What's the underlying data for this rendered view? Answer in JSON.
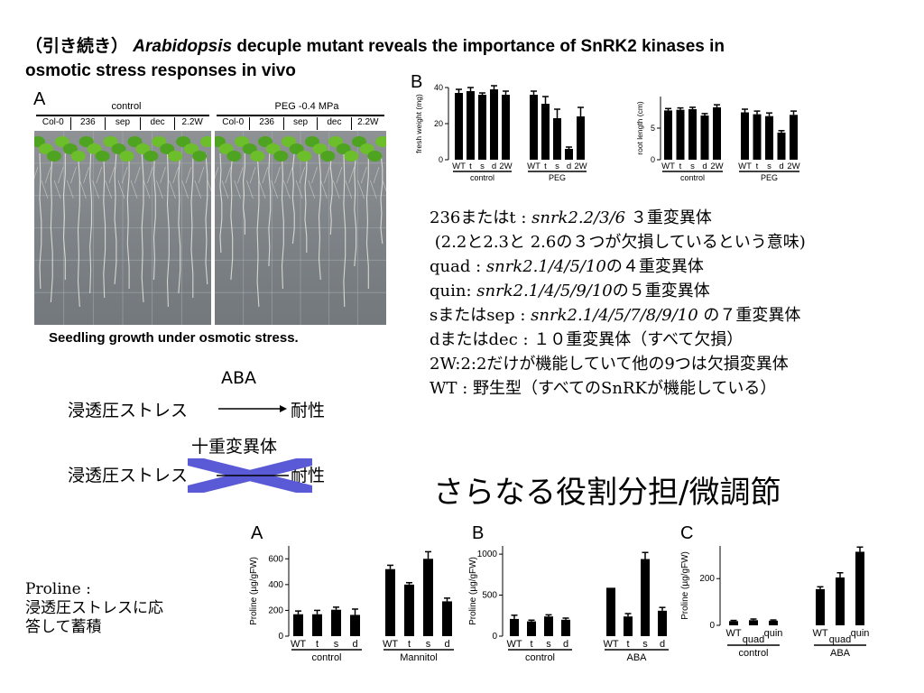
{
  "header": {
    "prefix": "（引き続き）",
    "italic_word": "Arabidopsis",
    "rest_line1": " decuple mutant reveals the importance of SnRK2 kinases in",
    "line2": "osmotic stress responses in vivo"
  },
  "figure_a": {
    "letter": "A",
    "left_photo": {
      "title": "control",
      "labels": [
        "Col-0",
        "236",
        "sep",
        "dec",
        "2.2W"
      ]
    },
    "right_photo": {
      "title": "PEG -0.4 MPa",
      "labels": [
        "Col-0",
        "236",
        "sep",
        "dec",
        "2.2W"
      ]
    },
    "caption": "Seedling growth under osmotic stress."
  },
  "figure_b": {
    "letter": "B",
    "chart_data": [
      {
        "type": "bar",
        "ylabel": "fresh weight (mg)",
        "ylim": [
          0,
          40
        ],
        "yticks": [
          0,
          20,
          40
        ],
        "groups": [
          {
            "name": "control",
            "categories": [
              "WT",
              "t",
              "s",
              "d",
              "2W"
            ],
            "values": [
              37,
              38,
              36,
              39,
              36
            ],
            "errors": [
              2,
              2,
              1,
              2,
              2
            ]
          },
          {
            "name": "PEG",
            "categories": [
              "WT",
              "t",
              "s",
              "d",
              "2W"
            ],
            "values": [
              36,
              31,
              23,
              6,
              24
            ],
            "errors": [
              2,
              4,
              5,
              1,
              5
            ]
          }
        ]
      },
      {
        "type": "bar",
        "ylabel": "root length (cm)",
        "ylim": [
          0,
          10
        ],
        "yticks": [
          0,
          5
        ],
        "groups": [
          {
            "name": "control",
            "categories": [
              "WT",
              "t",
              "s",
              "d",
              "2W"
            ],
            "values": [
              7.8,
              7.9,
              8.0,
              7.0,
              8.3
            ],
            "errors": [
              0.3,
              0.3,
              0.3,
              0.3,
              0.4
            ]
          },
          {
            "name": "PEG",
            "categories": [
              "WT",
              "t",
              "s",
              "d",
              "2W"
            ],
            "values": [
              7.5,
              7.2,
              6.9,
              4.3,
              7.1
            ],
            "errors": [
              0.5,
              0.5,
              0.5,
              0.3,
              0.6
            ]
          }
        ]
      }
    ]
  },
  "descriptions": [
    [
      {
        "t": "236または"
      },
      {
        "t": "t : "
      },
      {
        "t": "snrk2.2/3/6",
        "i": true
      },
      {
        "t": " ３重変異体"
      }
    ],
    [
      {
        "t": " (2.2と2.3と 2.6の３つが欠損しているという意味)"
      }
    ],
    [
      {
        "t": "quad : "
      },
      {
        "t": "snrk2.1/4/5/10",
        "i": true
      },
      {
        "t": "の４重変異体"
      }
    ],
    [
      {
        "t": "quin: "
      },
      {
        "t": "snrk2.1/4/5/9/10",
        "i": true
      },
      {
        "t": "の５重変異体"
      }
    ],
    [
      {
        "t": "sまたはsep : "
      },
      {
        "t": "snrk2.1/4/5/7/8/9/10",
        "i": true
      },
      {
        "t": " の７重変異体"
      }
    ],
    [
      {
        "t": "dまたはdec : １０重変異体（すべて欠損）"
      }
    ],
    [
      {
        "t": "2W:2:2だけが機能していて他の9つは欠損変異体"
      }
    ],
    [
      {
        "t": "WT : 野生型（すべてのSnRKが機能している）"
      }
    ]
  ],
  "diagram": {
    "top_label": "ABA",
    "row1_left": "浸透圧ストレス",
    "row1_right": "耐性",
    "mutant_label": "十重変異体",
    "row2_left": "浸透圧ストレス",
    "row2_right": "耐性",
    "cross_color": "#5a5ad6"
  },
  "big_text": "さらなる役割分担/微調節",
  "proline_note": [
    "Proline :",
    "浸透圧ストレスに応",
    "答して蓄積"
  ],
  "bottom_charts": {
    "chart_data": [
      {
        "letter": "A",
        "type": "bar",
        "ylabel": "Proline (µg/gFW)",
        "ylim": [
          0,
          700
        ],
        "yticks": [
          0,
          200,
          400,
          600
        ],
        "groups": [
          {
            "name": "control",
            "categories": [
              "WT",
              "t",
              "s",
              "d"
            ],
            "values": [
              170,
              170,
              205,
              165
            ],
            "errors": [
              25,
              30,
              20,
              45
            ]
          },
          {
            "name": "Mannitol",
            "categories": [
              "WT",
              "t",
              "s",
              "d"
            ],
            "values": [
              520,
              400,
              600,
              270
            ],
            "errors": [
              30,
              15,
              55,
              25
            ]
          }
        ]
      },
      {
        "letter": "B",
        "type": "bar",
        "ylabel": "Proline (µg/gFW)",
        "ylim": [
          0,
          1100
        ],
        "yticks": [
          0,
          500,
          1000
        ],
        "groups": [
          {
            "name": "control",
            "categories": [
              "WT",
              "t",
              "s",
              "d"
            ],
            "values": [
              210,
              180,
              240,
              200
            ],
            "errors": [
              45,
              15,
              20,
              20
            ]
          },
          {
            "name": "ABA",
            "categories": [
              "WT",
              "t",
              "s",
              "d"
            ],
            "values": [
              590,
              240,
              940,
              310
            ],
            "errors": [
              0,
              35,
              80,
              40
            ]
          }
        ]
      },
      {
        "letter": "C",
        "type": "bar",
        "ylabel": "Proline (µg/gFW)",
        "ylim": [
          0,
          340
        ],
        "yticks": [
          0,
          200
        ],
        "groups": [
          {
            "name": "control",
            "sublabel": "quad",
            "categories": [
              "WT",
              "",
              "quin"
            ],
            "values": [
              18,
              22,
              20
            ],
            "errors": [
              3,
              5,
              3
            ]
          },
          {
            "name": "ABA",
            "sublabel": "quad",
            "categories": [
              "WT",
              "",
              "quin"
            ],
            "values": [
              155,
              205,
              315
            ],
            "errors": [
              10,
              20,
              20
            ]
          }
        ]
      }
    ]
  }
}
